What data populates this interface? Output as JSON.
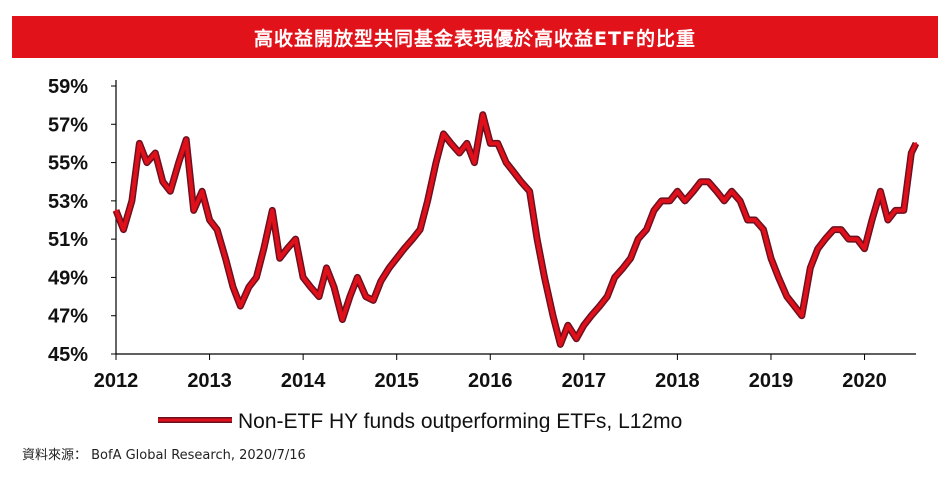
{
  "banner": {
    "title": "高收益開放型共同基金表現優於高收益ETF的比重"
  },
  "source": {
    "text": "資料來源： BofA Global Research, 2020/7/16"
  },
  "colors": {
    "banner": "#e2121a",
    "line_fill": "#e0101a",
    "line_shadow": "#6b1020",
    "axis": "#000000"
  },
  "chart_data": {
    "type": "line",
    "title": "",
    "xlabel": "",
    "ylabel": "",
    "x_ticks": [
      "2012",
      "2013",
      "2014",
      "2015",
      "2016",
      "2017",
      "2018",
      "2019",
      "2020"
    ],
    "y_ticks": [
      "45%",
      "47%",
      "49%",
      "51%",
      "53%",
      "55%",
      "57%",
      "59%"
    ],
    "xlim": [
      2012.0,
      2020.55
    ],
    "ylim": [
      45,
      59
    ],
    "grid": false,
    "legend_position": "bottom-center",
    "series": [
      {
        "name": "Non-ETF HY funds outperforming ETFs, L12mo",
        "x": [
          2012.0,
          2012.08,
          2012.17,
          2012.25,
          2012.33,
          2012.42,
          2012.5,
          2012.58,
          2012.67,
          2012.75,
          2012.83,
          2012.92,
          2013.0,
          2013.08,
          2013.17,
          2013.25,
          2013.33,
          2013.42,
          2013.5,
          2013.58,
          2013.67,
          2013.75,
          2013.83,
          2013.92,
          2014.0,
          2014.08,
          2014.17,
          2014.25,
          2014.33,
          2014.42,
          2014.5,
          2014.58,
          2014.67,
          2014.75,
          2014.83,
          2014.92,
          2015.0,
          2015.08,
          2015.17,
          2015.25,
          2015.33,
          2015.42,
          2015.5,
          2015.58,
          2015.67,
          2015.75,
          2015.83,
          2015.92,
          2016.0,
          2016.08,
          2016.17,
          2016.25,
          2016.33,
          2016.42,
          2016.5,
          2016.58,
          2016.67,
          2016.75,
          2016.83,
          2016.92,
          2017.0,
          2017.08,
          2017.17,
          2017.25,
          2017.33,
          2017.42,
          2017.5,
          2017.58,
          2017.67,
          2017.75,
          2017.83,
          2017.92,
          2018.0,
          2018.08,
          2018.17,
          2018.25,
          2018.33,
          2018.42,
          2018.5,
          2018.58,
          2018.67,
          2018.75,
          2018.83,
          2018.92,
          2019.0,
          2019.08,
          2019.17,
          2019.25,
          2019.33,
          2019.42,
          2019.5,
          2019.58,
          2019.67,
          2019.75,
          2019.83,
          2019.92,
          2020.0,
          2020.08,
          2020.17,
          2020.25,
          2020.33,
          2020.42,
          2020.5,
          2020.55
        ],
        "y": [
          52.5,
          51.5,
          53.0,
          56.0,
          55.0,
          55.5,
          54.0,
          53.5,
          55.0,
          56.2,
          52.5,
          53.5,
          52.0,
          51.5,
          50.0,
          48.5,
          47.5,
          48.5,
          49.0,
          50.5,
          52.5,
          50.0,
          50.5,
          51.0,
          49.0,
          48.5,
          48.0,
          49.5,
          48.5,
          46.8,
          48.0,
          49.0,
          48.0,
          47.8,
          48.8,
          49.5,
          50.0,
          50.5,
          51.0,
          51.5,
          53.0,
          55.0,
          56.5,
          56.0,
          55.5,
          56.0,
          55.0,
          57.5,
          56.0,
          56.0,
          55.0,
          54.5,
          54.0,
          53.5,
          51.0,
          49.0,
          47.0,
          45.5,
          46.5,
          45.8,
          46.5,
          47.0,
          47.5,
          48.0,
          49.0,
          49.5,
          50.0,
          51.0,
          51.5,
          52.5,
          53.0,
          53.0,
          53.5,
          53.0,
          53.5,
          54.0,
          54.0,
          53.5,
          53.0,
          53.5,
          53.0,
          52.0,
          52.0,
          51.5,
          50.0,
          49.0,
          48.0,
          47.5,
          47.0,
          49.5,
          50.5,
          51.0,
          51.5,
          51.5,
          51.0,
          51.0,
          50.5,
          52.0,
          53.5,
          52.0,
          52.5,
          52.5,
          55.5,
          56.0
        ]
      }
    ]
  }
}
